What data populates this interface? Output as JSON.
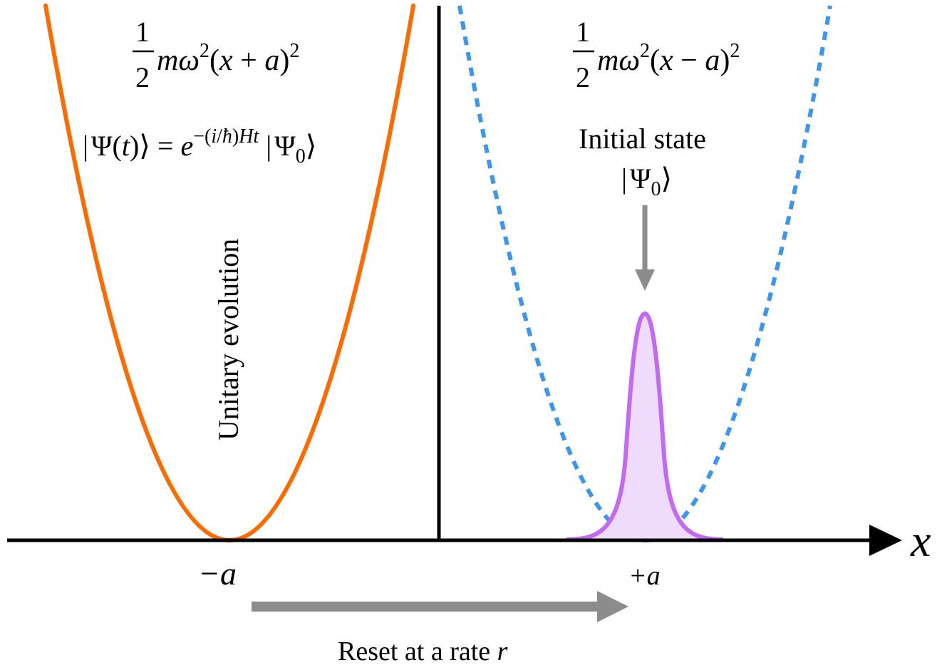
{
  "labels": {
    "axis_x": "x",
    "tick_left": "−a",
    "tick_right": "+a",
    "reset_label_text": "Reset at a rate ",
    "reset_label_var": "r",
    "unitary_label": "Unitary evolution",
    "initial_state_line1": "Initial state",
    "initial_state_line2": "|Ψ0⟩"
  },
  "formulas": {
    "left_potential": "½ mω²(x + a)²",
    "right_potential": "½ mω²(x − a)²",
    "evolution": "|Ψ(t)⟩ = e^−(i/ħ)Ht |Ψ0⟩"
  },
  "colors": {
    "left_potential": "#ff6a00",
    "right_potential": "#3d95f0",
    "wavepacket_stroke": "#c26af5",
    "wavepacket_fill": "#efdcfc",
    "arrows": "#8c8c8c",
    "axes": "#000000"
  }
}
